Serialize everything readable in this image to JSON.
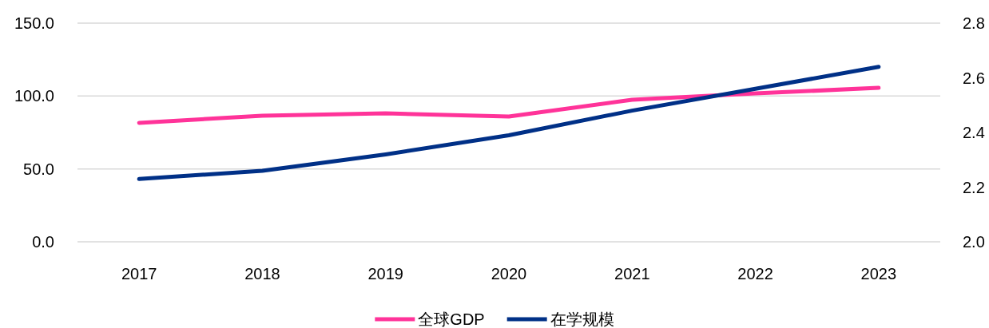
{
  "chart_data": {
    "type": "line",
    "categories": [
      "2017",
      "2018",
      "2019",
      "2020",
      "2021",
      "2022",
      "2023"
    ],
    "series": [
      {
        "name": "全球GDP",
        "color": "#ff3399",
        "values": [
          81.6,
          86.5,
          88.1,
          85.9,
          97.4,
          101.8,
          105.6
        ]
      },
      {
        "name": "在学规模",
        "color": "#003087",
        "axis": "y2",
        "values": [
          2.23,
          2.26,
          2.32,
          2.39,
          2.48,
          2.56,
          2.64
        ]
      }
    ],
    "ylim": [
      0,
      150
    ],
    "yticks": [
      {
        "value": 0,
        "label": "0.0"
      },
      {
        "value": 50,
        "label": "50.0"
      },
      {
        "value": 100,
        "label": "100.0"
      },
      {
        "value": 150,
        "label": "150.0"
      }
    ],
    "y2lim": [
      2.0,
      2.8
    ],
    "y2ticks": [
      {
        "value": 2.0,
        "label": "2.0"
      },
      {
        "value": 2.2,
        "label": "2.2"
      },
      {
        "value": 2.4,
        "label": "2.4"
      },
      {
        "value": 2.6,
        "label": "2.6"
      },
      {
        "value": 2.8,
        "label": "2.8"
      }
    ],
    "grid": "y",
    "legend": "bottom",
    "marker": "none",
    "line_style": "solid"
  }
}
